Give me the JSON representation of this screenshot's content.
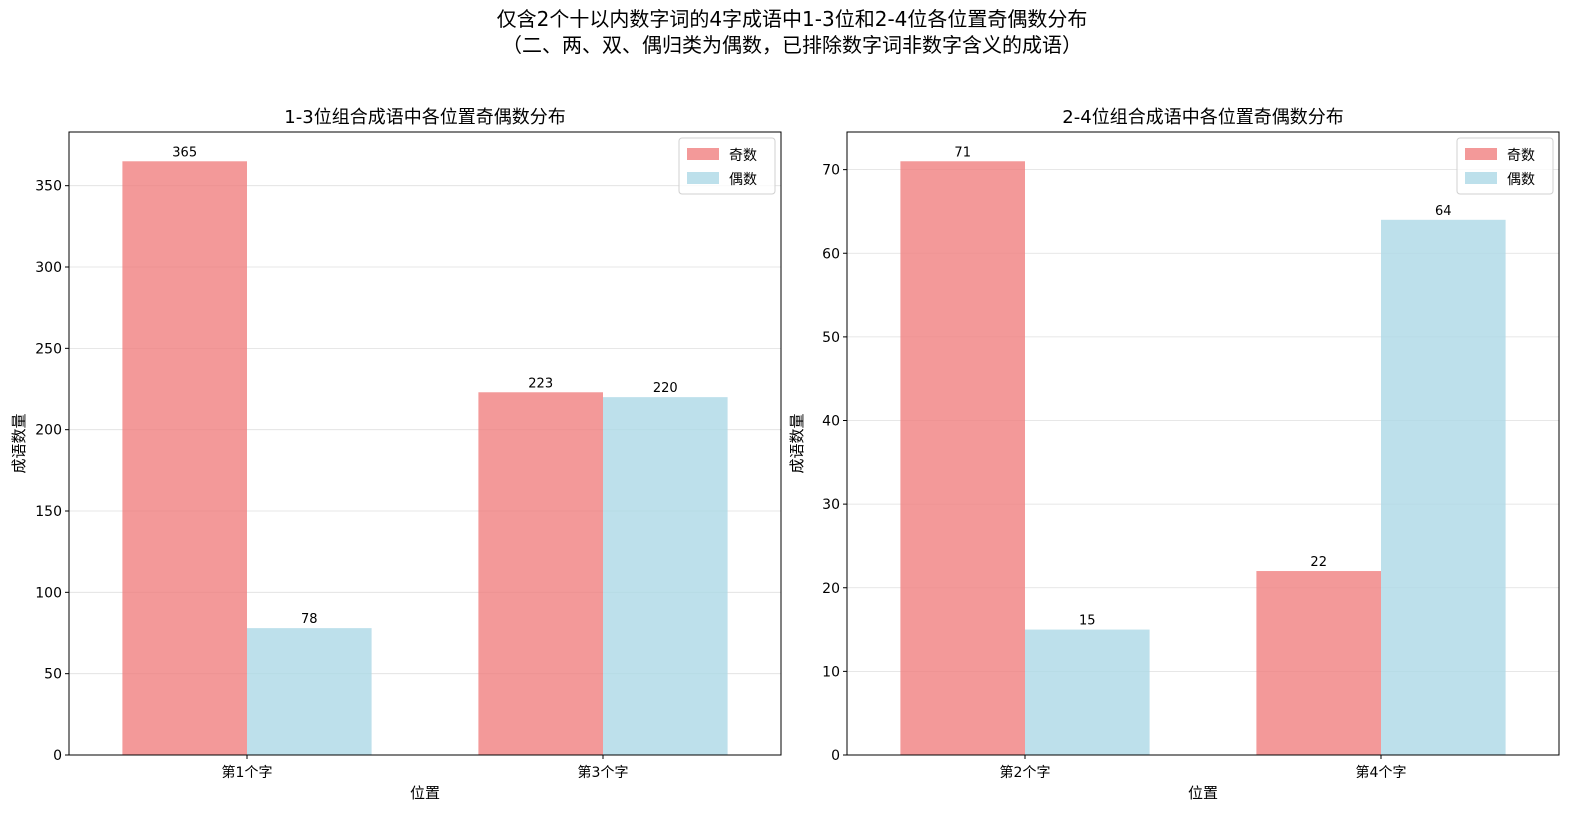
{
  "figure": {
    "suptitle_line1": "仅含2个十以内数字词的4字成语中1-3位和2-4位各位置奇偶数分布",
    "suptitle_line2": "（二、两、双、偶归类为偶数，已排除数字词非数字含义的成语）"
  },
  "colors": {
    "odd": "#f08080",
    "even": "#add8e6"
  },
  "chart_data": [
    {
      "type": "bar",
      "title": "1-3位组合成语中各位置奇偶数分布",
      "xlabel": "位置",
      "ylabel": "成语数量",
      "categories": [
        "第1个字",
        "第3个字"
      ],
      "series": [
        {
          "name": "奇数",
          "values": [
            365,
            223
          ]
        },
        {
          "name": "偶数",
          "values": [
            78,
            220
          ]
        }
      ],
      "ylim": [
        0,
        383
      ],
      "yticks": [
        0,
        50,
        100,
        150,
        200,
        250,
        300,
        350
      ],
      "grid": "y",
      "legend": "top-right"
    },
    {
      "type": "bar",
      "title": "2-4位组合成语中各位置奇偶数分布",
      "xlabel": "位置",
      "ylabel": "成语数量",
      "categories": [
        "第2个字",
        "第4个字"
      ],
      "series": [
        {
          "name": "奇数",
          "values": [
            71,
            22
          ]
        },
        {
          "name": "偶数",
          "values": [
            15,
            64
          ]
        }
      ],
      "ylim": [
        0,
        74.5
      ],
      "yticks": [
        0,
        10,
        20,
        30,
        40,
        50,
        60,
        70
      ],
      "grid": "y",
      "legend": "top-right"
    }
  ]
}
